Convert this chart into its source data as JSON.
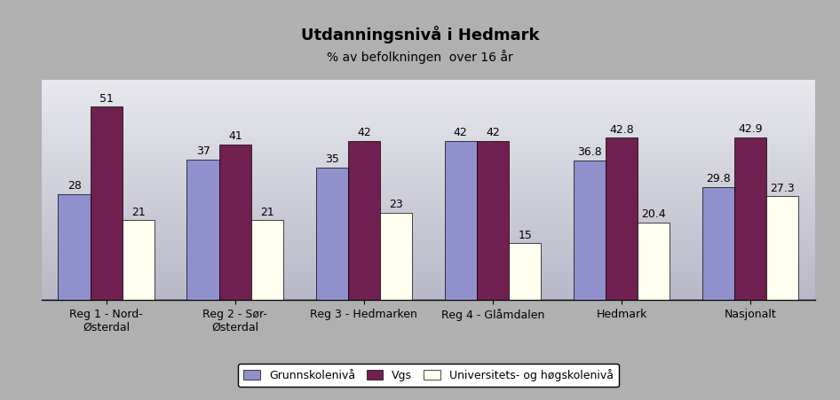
{
  "title": "Utdanningsnivå i Hedmark",
  "subtitle": "% av befolkningen  over 16 år",
  "categories": [
    "Reg 1 - Nord-\nØsterdal",
    "Reg 2 - Sør-\nØsterdal",
    "Reg 3 - Hedmarken",
    "Reg 4 - Glåmdalen",
    "Hedmark",
    "Nasjonalt"
  ],
  "series": [
    {
      "name": "Grunnskolenivå",
      "values": [
        28,
        37,
        35,
        42,
        36.8,
        29.8
      ],
      "color": "#9090cc"
    },
    {
      "name": "Vgs",
      "values": [
        51,
        41,
        42,
        42,
        42.8,
        42.9
      ],
      "color": "#702050"
    },
    {
      "name": "Universitets- og høgskolenivå",
      "values": [
        21,
        21,
        23,
        15,
        20.4,
        27.3
      ],
      "color": "#fffff0"
    }
  ],
  "ylim": [
    0,
    58
  ],
  "bar_width": 0.25,
  "background_color": "#b0b0b0",
  "plot_bg_top": "#e8e8ee",
  "plot_bg_bottom": "#b8b8c8",
  "title_fontsize": 13,
  "subtitle_fontsize": 10,
  "tick_fontsize": 9,
  "label_fontsize": 9,
  "legend_fontsize": 9
}
